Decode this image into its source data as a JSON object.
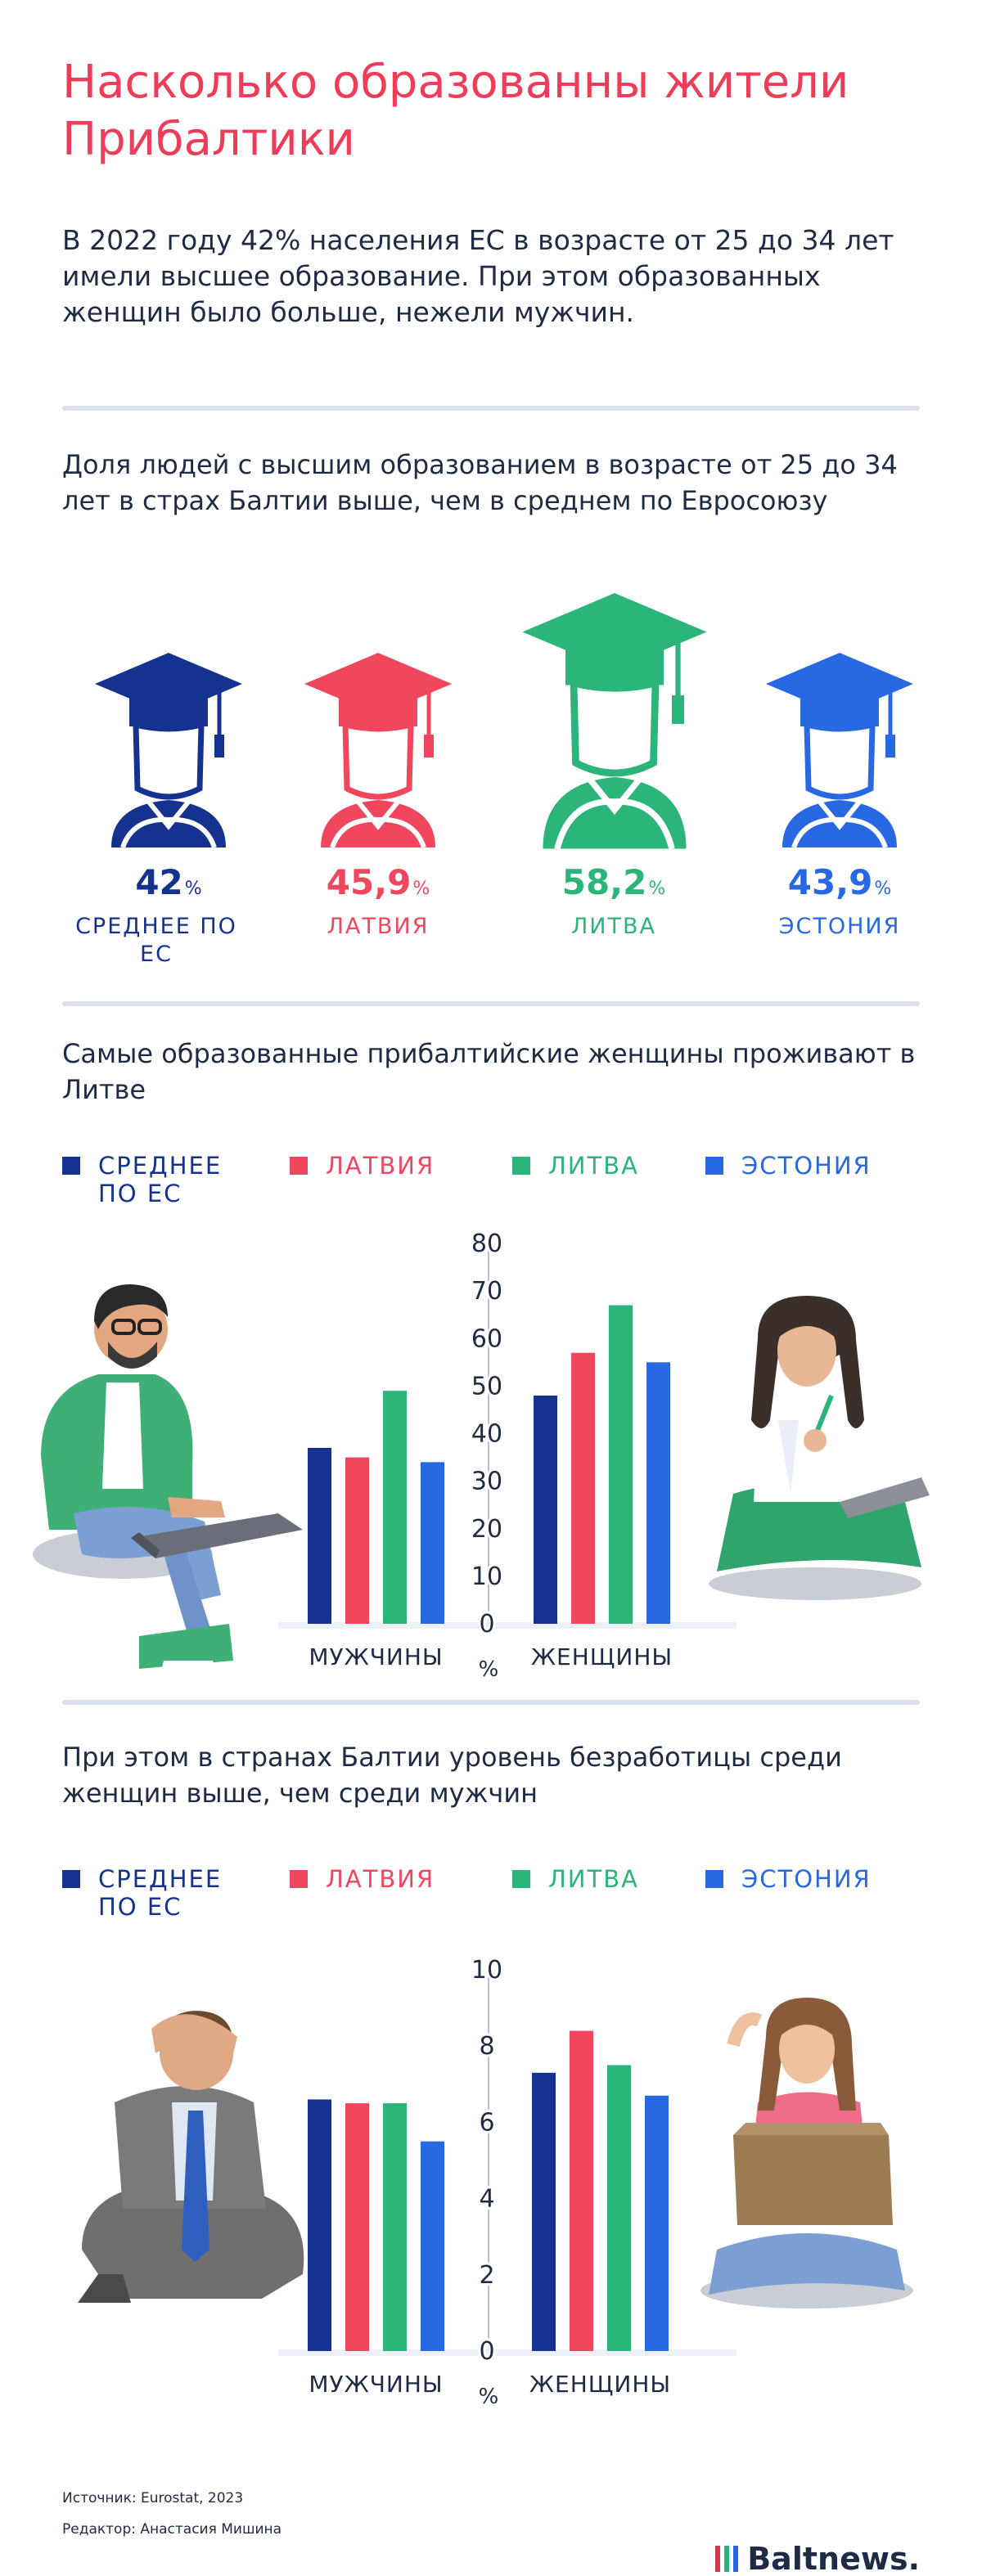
{
  "title": "Насколько образованны жители Прибалтики",
  "lead": "В 2022 году 42% населения ЕС в возрасте от 25 до 34 лет имели высшее образование. При этом образованных женщин было больше, нежели мужчин.",
  "section1": {
    "heading": "Доля людей с высшим образованием в возрасте от 25 до 34 лет в страх Балтии выше, чем в среднем по Евросоюзу",
    "items": [
      {
        "value": "42",
        "unit": "%",
        "label": "СРЕДНЕЕ ПО ЕС",
        "color": "#15328f"
      },
      {
        "value": "45,9",
        "unit": "%",
        "label": "ЛАТВИЯ",
        "color": "#f0475e"
      },
      {
        "value": "58,2",
        "unit": "%",
        "label": "ЛИТВА",
        "color": "#2bb57a"
      },
      {
        "value": "43,9",
        "unit": "%",
        "label": "ЭСТОНИЯ",
        "color": "#2869e3"
      }
    ]
  },
  "section2": {
    "heading": "Самые образованные прибалтийские женщины проживают в Литве"
  },
  "section3": {
    "heading": "При этом в странах Балтии уровень безработицы среди женщин выше, чем среди мужчин"
  },
  "legend": [
    {
      "label": "СРЕДНЕЕ ПО ЕС",
      "color": "#15328f"
    },
    {
      "label": "ЛАТВИЯ",
      "color": "#f0475e"
    },
    {
      "label": "ЛИТВА",
      "color": "#2bb57a"
    },
    {
      "label": "ЭСТОНИЯ",
      "color": "#2869e3"
    }
  ],
  "chart_data": [
    {
      "type": "bar",
      "categories": [
        "МУЖЧИНЫ",
        "ЖЕНЩИНЫ"
      ],
      "ylabel": "%",
      "ylim": [
        0,
        80
      ],
      "yticks": [
        "0",
        "10",
        "20",
        "30",
        "40",
        "50",
        "60",
        "70",
        "80"
      ],
      "series": [
        {
          "name": "СРЕДНЕЕ ПО ЕС",
          "values": [
            37,
            48
          ],
          "color": "#15328f"
        },
        {
          "name": "ЛАТВИЯ",
          "values": [
            35,
            57
          ],
          "color": "#f0475e"
        },
        {
          "name": "ЛИТВА",
          "values": [
            49,
            67
          ],
          "color": "#2bb57a"
        },
        {
          "name": "ЭСТОНИЯ",
          "values": [
            34,
            55
          ],
          "color": "#2869e3"
        }
      ]
    },
    {
      "type": "bar",
      "categories": [
        "МУЖЧИНЫ",
        "ЖЕНЩИНЫ"
      ],
      "ylabel": "%",
      "ylim": [
        0,
        10
      ],
      "yticks": [
        "0",
        "2",
        "4",
        "6",
        "8",
        "10"
      ],
      "series": [
        {
          "name": "СРЕДНЕЕ ПО ЕС",
          "values": [
            6.6,
            7.3
          ],
          "color": "#15328f"
        },
        {
          "name": "ЛАТВИЯ",
          "values": [
            6.5,
            8.4
          ],
          "color": "#f0475e"
        },
        {
          "name": "ЛИТВА",
          "values": [
            6.5,
            7.5
          ],
          "color": "#2bb57a"
        },
        {
          "name": "ЭСТОНИЯ",
          "values": [
            5.5,
            6.7
          ],
          "color": "#2869e3"
        }
      ]
    }
  ],
  "source": "Источник: Eurostat, 2023",
  "editor": "Редактор: Анастасия Мишина",
  "logo": "Baltnews."
}
